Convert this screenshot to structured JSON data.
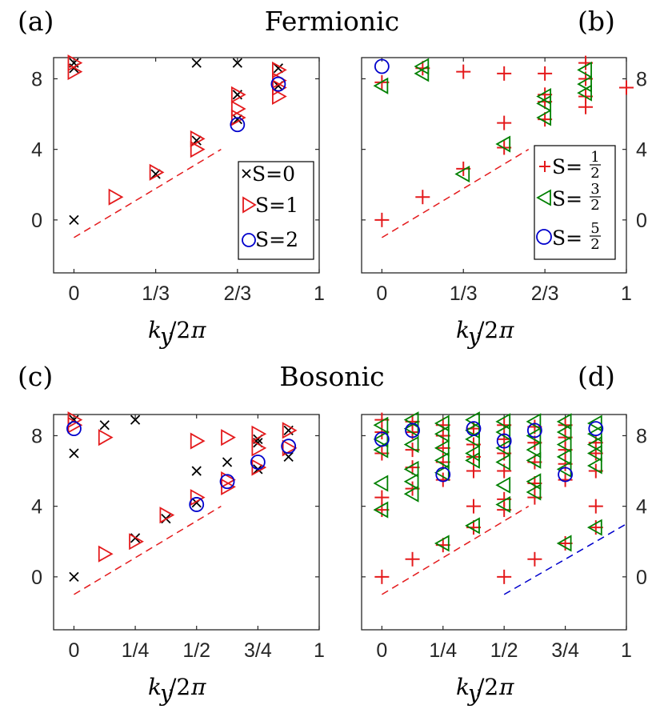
{
  "titles": {
    "top": "Fermionic",
    "bottom": "Bosonic"
  },
  "chart_data": [
    {
      "panel": "(a)",
      "type": "scatter",
      "yaxis": "left",
      "xlim": [
        -0.083,
        1
      ],
      "ylim": [
        -3,
        9.2
      ],
      "xticks": [
        0,
        0.3333,
        0.6667,
        1
      ],
      "xticklabels": [
        "0",
        "1/3",
        "2/3",
        "1"
      ],
      "yticks": [
        0,
        4,
        8
      ],
      "yticklabels": [
        "0",
        "4",
        "8"
      ],
      "xlabel": "k_y/2π",
      "legend_position": "lower-right",
      "series": [
        {
          "name": "S=0",
          "marker": "x",
          "color": "#000000",
          "x": [
            0,
            0,
            0,
            0.3333,
            0.5,
            0.5,
            0.6667,
            0.6667,
            0.6667,
            0.8333,
            0.8333
          ],
          "y": [
            0,
            8.6,
            8.9,
            2.6,
            4.5,
            8.9,
            5.7,
            7.1,
            8.9,
            7.6,
            8.6
          ]
        },
        {
          "name": "S=1",
          "marker": "triangle-right",
          "color": "#e41a1c",
          "x": [
            0,
            0,
            0.1667,
            0.3333,
            0.5,
            0.5,
            0.6667,
            0.6667,
            0.6667,
            0.8333,
            0.8333,
            0.8333,
            0.8333
          ],
          "y": [
            8.4,
            8.9,
            1.3,
            2.7,
            4.0,
            4.6,
            5.8,
            6.3,
            7.1,
            7.0,
            7.5,
            7.9,
            8.5
          ]
        },
        {
          "name": "S=2",
          "marker": "circle",
          "color": "#0000cc",
          "x": [
            0.6667,
            0.8333
          ],
          "y": [
            5.4,
            7.7
          ]
        }
      ],
      "guides": [
        {
          "color": "#e41a1c",
          "x": [
            0,
            0.6
          ],
          "y": [
            -1,
            4.0
          ]
        }
      ]
    },
    {
      "panel": "(b)",
      "type": "scatter",
      "yaxis": "right",
      "xlim": [
        -0.083,
        1
      ],
      "ylim": [
        -3,
        9.2
      ],
      "xticks": [
        0,
        0.3333,
        0.6667,
        1
      ],
      "xticklabels": [
        "0",
        "1/3",
        "2/3",
        "1"
      ],
      "yticks": [
        0,
        4,
        8
      ],
      "yticklabels": [
        "0",
        "4",
        "8"
      ],
      "xlabel": "k_y/2π",
      "legend_position": "lower-right",
      "series": [
        {
          "name": "S=1/2",
          "marker": "plus",
          "color": "#e41a1c",
          "x": [
            0,
            0,
            0.1667,
            0.1667,
            0.3333,
            0.3333,
            0.5,
            0.5,
            0.5,
            0.6667,
            0.6667,
            0.6667,
            0.6667,
            0.8333,
            0.8333,
            0.8333,
            0.8333,
            1.0
          ],
          "y": [
            0,
            7.8,
            1.3,
            8.6,
            2.9,
            8.4,
            5.5,
            4.1,
            8.3,
            5.7,
            6.7,
            7.1,
            8.3,
            6.4,
            7.0,
            8.0,
            8.9,
            7.5
          ]
        },
        {
          "name": "S=3/2",
          "marker": "triangle-left",
          "color": "#008000",
          "x": [
            0,
            0.1667,
            0.1667,
            0.3333,
            0.5,
            0.6667,
            0.6667,
            0.6667,
            0.8333,
            0.8333,
            0.8333
          ],
          "y": [
            7.6,
            8.3,
            8.7,
            2.6,
            4.3,
            5.8,
            6.6,
            7.0,
            7.2,
            7.7,
            8.5
          ]
        },
        {
          "name": "S=5/2",
          "marker": "circle",
          "color": "#0000cc",
          "x": [
            0
          ],
          "y": [
            8.7
          ]
        }
      ],
      "guides": [
        {
          "color": "#e41a1c",
          "x": [
            0,
            0.6
          ],
          "y": [
            -1,
            4.0
          ]
        }
      ]
    },
    {
      "panel": "(c)",
      "type": "scatter",
      "yaxis": "left",
      "xlim": [
        -0.083,
        1
      ],
      "ylim": [
        -3,
        9.2
      ],
      "xticks": [
        0,
        0.25,
        0.5,
        0.75,
        1
      ],
      "xticklabels": [
        "0",
        "1/4",
        "1/2",
        "3/4",
        "1"
      ],
      "yticks": [
        0,
        4,
        8
      ],
      "yticklabels": [
        "0",
        "4",
        "8"
      ],
      "xlabel": "k_y/2π",
      "series": [
        {
          "name": "S=0",
          "marker": "x",
          "color": "#000000",
          "x": [
            0,
            0,
            0,
            0.125,
            0.25,
            0.25,
            0.375,
            0.5,
            0.5,
            0.625,
            0.75,
            0.75,
            0.75,
            0.875,
            0.875
          ],
          "y": [
            0,
            7.0,
            8.9,
            8.6,
            8.9,
            2.2,
            3.3,
            4.2,
            6.0,
            6.5,
            6.1,
            7.6,
            7.8,
            6.8,
            8.3
          ]
        },
        {
          "name": "S=1",
          "marker": "triangle-right",
          "color": "#e41a1c",
          "x": [
            0,
            0,
            0.125,
            0.125,
            0.25,
            0.375,
            0.5,
            0.5,
            0.625,
            0.625,
            0.625,
            0.75,
            0.75,
            0.75,
            0.875,
            0.875
          ],
          "y": [
            8.6,
            8.9,
            1.3,
            7.9,
            2.0,
            3.5,
            4.5,
            7.7,
            5.1,
            5.5,
            7.9,
            6.2,
            7.3,
            8.1,
            7.3,
            8.3
          ]
        },
        {
          "name": "S=2",
          "marker": "circle",
          "color": "#0000cc",
          "x": [
            0,
            0.5,
            0.625,
            0.75,
            0.875
          ],
          "y": [
            8.4,
            4.1,
            5.4,
            6.5,
            7.4
          ]
        }
      ],
      "guides": [
        {
          "color": "#e41a1c",
          "x": [
            0,
            0.6
          ],
          "y": [
            -1,
            4.0
          ]
        }
      ]
    },
    {
      "panel": "(d)",
      "type": "scatter",
      "yaxis": "right",
      "xlim": [
        -0.083,
        1
      ],
      "ylim": [
        -3,
        9.2
      ],
      "xticks": [
        0,
        0.25,
        0.5,
        0.75,
        1
      ],
      "xticklabels": [
        "0",
        "1/4",
        "1/2",
        "3/4",
        "1"
      ],
      "yticks": [
        0,
        4,
        8
      ],
      "yticklabels": [
        "0",
        "4",
        "8"
      ],
      "xlabel": "k_y/2π",
      "series": [
        {
          "name": "S=1/2",
          "marker": "plus",
          "color": "#e41a1c",
          "x": [
            0,
            0,
            0,
            0,
            0,
            0,
            0.125,
            0.125,
            0.125,
            0.125,
            0.125,
            0.125,
            0.25,
            0.25,
            0.25,
            0.25,
            0.25,
            0.25,
            0.375,
            0.375,
            0.375,
            0.375,
            0.375,
            0.375,
            0.5,
            0.5,
            0.5,
            0.5,
            0.5,
            0.5,
            0.5,
            0.625,
            0.625,
            0.625,
            0.625,
            0.625,
            0.625,
            0.75,
            0.75,
            0.75,
            0.75,
            0.75,
            0.75,
            0.875,
            0.875,
            0.875,
            0.875,
            0.875
          ],
          "y": [
            0,
            3.8,
            4.5,
            7.0,
            8.2,
            8.9,
            1.0,
            5.0,
            6.2,
            7.2,
            8.2,
            8.8,
            1.8,
            5.5,
            6.5,
            7.3,
            8.0,
            8.6,
            2.8,
            4.0,
            6.0,
            6.8,
            7.5,
            8.4,
            0,
            3.8,
            4.4,
            6.0,
            7.0,
            7.8,
            8.6,
            1.0,
            4.5,
            5.3,
            6.5,
            7.6,
            8.5,
            1.9,
            5.5,
            6.4,
            7.2,
            7.9,
            8.6,
            2.8,
            4.0,
            6.0,
            7.0,
            7.6
          ]
        },
        {
          "name": "S=3/2",
          "marker": "triangle-left",
          "color": "#008000",
          "x": [
            0,
            0,
            0,
            0,
            0,
            0.125,
            0.125,
            0.125,
            0.125,
            0.125,
            0.125,
            0.25,
            0.25,
            0.25,
            0.25,
            0.25,
            0.25,
            0.375,
            0.375,
            0.375,
            0.375,
            0.375,
            0.375,
            0.5,
            0.5,
            0.5,
            0.5,
            0.5,
            0.5,
            0.625,
            0.625,
            0.625,
            0.625,
            0.625,
            0.625,
            0.75,
            0.75,
            0.75,
            0.75,
            0.75,
            0.75,
            0.875,
            0.875,
            0.875,
            0.875,
            0.875,
            0.875
          ],
          "y": [
            3.8,
            5.3,
            7.2,
            7.8,
            8.6,
            4.7,
            5.4,
            6.1,
            7.5,
            8.4,
            8.9,
            1.9,
            5.9,
            6.6,
            7.3,
            8.1,
            8.7,
            2.9,
            6.6,
            7.0,
            7.8,
            8.3,
            8.9,
            4.1,
            5.2,
            6.5,
            7.3,
            8.2,
            8.8,
            4.8,
            5.4,
            6.6,
            7.2,
            8.0,
            8.8,
            1.9,
            6.1,
            6.8,
            7.5,
            8.2,
            8.8,
            2.8,
            6.3,
            7.0,
            7.5,
            8.1,
            8.7
          ]
        },
        {
          "name": "S=5/2",
          "marker": "circle",
          "color": "#0000cc",
          "x": [
            0,
            0.125,
            0.25,
            0.375,
            0.5,
            0.625,
            0.75,
            0.875
          ],
          "y": [
            7.8,
            8.3,
            5.8,
            8.4,
            7.7,
            8.3,
            5.8,
            8.4
          ]
        }
      ],
      "guides": [
        {
          "color": "#e41a1c",
          "x": [
            0,
            0.6
          ],
          "y": [
            -1,
            4.0
          ]
        },
        {
          "color": "#0000cc",
          "x": [
            0.5,
            1.0
          ],
          "y": [
            -1,
            3.0
          ]
        }
      ]
    }
  ]
}
